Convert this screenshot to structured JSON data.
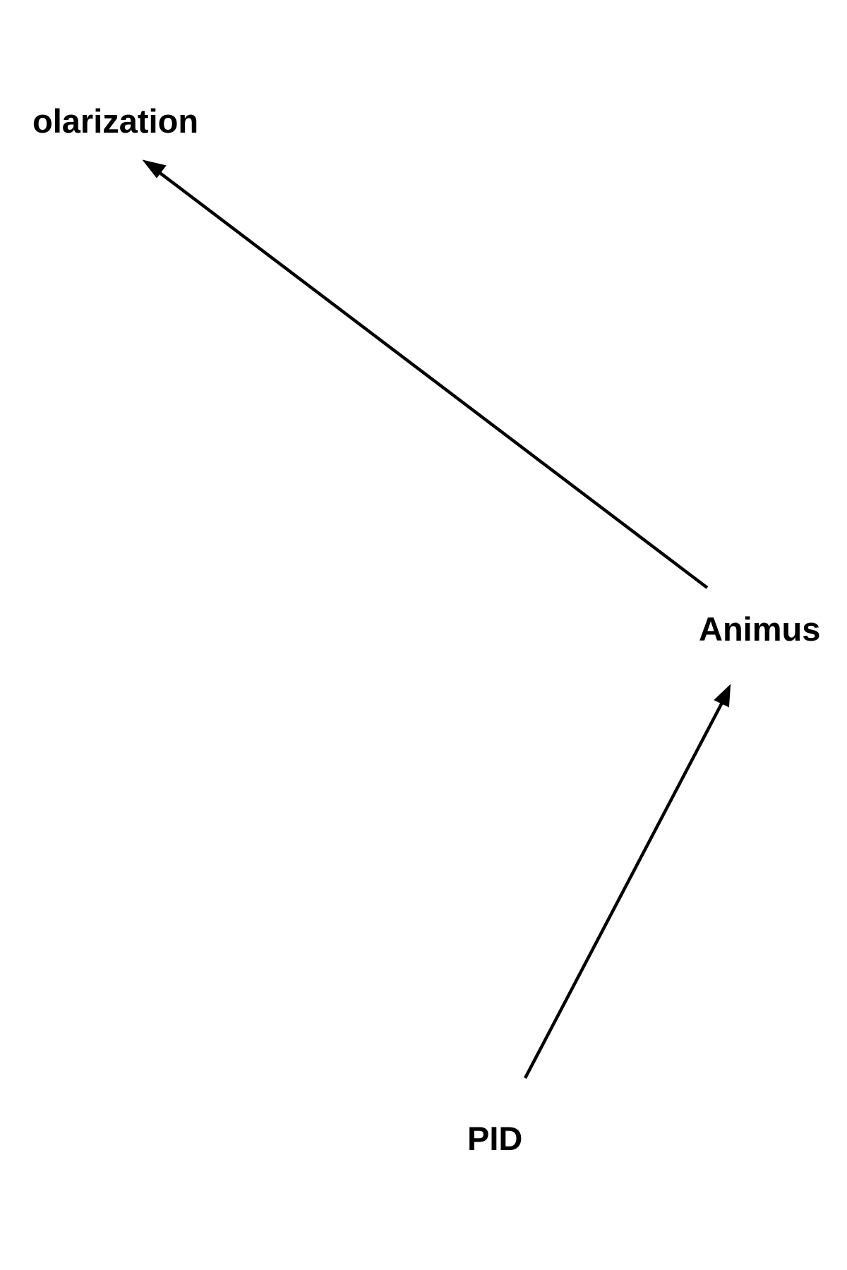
{
  "diagram": {
    "nodes": [
      {
        "id": "polarization",
        "label": "olarization"
      },
      {
        "id": "animus",
        "label": "Animus"
      },
      {
        "id": "pid",
        "label": "PID"
      }
    ],
    "edges": [
      {
        "from": "animus",
        "to": "polarization"
      },
      {
        "from": "pid",
        "to": "animus"
      }
    ],
    "colors": {
      "line": "#000000",
      "text": "#000000",
      "background": "#ffffff"
    }
  }
}
